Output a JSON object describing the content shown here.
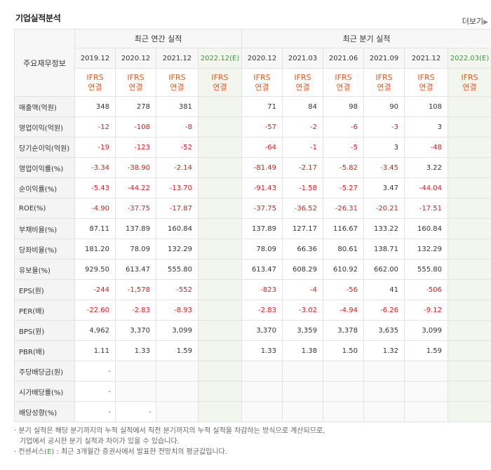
{
  "title": "기업실적분석",
  "more_label": "더보기",
  "corner_label": "주요재무정보",
  "group_annual": "최근 연간 실적",
  "group_quarter": "최근 분기 실적",
  "periods": [
    {
      "label": "2019.12",
      "est": false
    },
    {
      "label": "2020.12",
      "est": false
    },
    {
      "label": "2021.12",
      "est": false
    },
    {
      "label": "2022.12(E)",
      "est": true
    },
    {
      "label": "2020.12",
      "est": false
    },
    {
      "label": "2021.03",
      "est": false
    },
    {
      "label": "2021.06",
      "est": false
    },
    {
      "label": "2021.09",
      "est": false
    },
    {
      "label": "2021.12",
      "est": false
    },
    {
      "label": "2022.03(E)",
      "est": true
    }
  ],
  "ifrs_line1": "IFRS",
  "ifrs_line2": "연결",
  "rows": [
    {
      "label": "매출액(억원)",
      "values": [
        "348",
        "278",
        "381",
        "",
        "71",
        "84",
        "98",
        "90",
        "108",
        ""
      ]
    },
    {
      "label": "영업이익(억원)",
      "values": [
        "-12",
        "-108",
        "-8",
        "",
        "-57",
        "-2",
        "-6",
        "-3",
        "3",
        ""
      ]
    },
    {
      "label": "당기순이익(억원)",
      "values": [
        "-19",
        "-123",
        "-52",
        "",
        "-64",
        "-1",
        "-5",
        "3",
        "-48",
        ""
      ]
    },
    {
      "label": "영업이익률(%)",
      "values": [
        "-3.34",
        "-38.90",
        "-2.14",
        "",
        "-81.49",
        "-2.17",
        "-5.82",
        "-3.45",
        "3.22",
        ""
      ]
    },
    {
      "label": "순이익률(%)",
      "values": [
        "-5.43",
        "-44.22",
        "-13.70",
        "",
        "-91.43",
        "-1.58",
        "-5.27",
        "3.47",
        "-44.04",
        ""
      ]
    },
    {
      "label": "ROE(%)",
      "values": [
        "-4.90",
        "-37.75",
        "-17.87",
        "",
        "-37.75",
        "-36.52",
        "-26.31",
        "-20.21",
        "-17.51",
        ""
      ]
    },
    {
      "label": "부채비율(%)",
      "values": [
        "87.11",
        "137.89",
        "160.84",
        "",
        "137.89",
        "127.17",
        "116.67",
        "133.22",
        "160.84",
        ""
      ]
    },
    {
      "label": "당좌비율(%)",
      "values": [
        "181.20",
        "78.09",
        "132.29",
        "",
        "78.09",
        "66.36",
        "80.61",
        "138.71",
        "132.29",
        ""
      ]
    },
    {
      "label": "유보율(%)",
      "values": [
        "929.50",
        "613.47",
        "555.80",
        "",
        "613.47",
        "608.29",
        "610.92",
        "662.00",
        "555.80",
        ""
      ]
    },
    {
      "label": "EPS(원)",
      "values": [
        "-244",
        "-1,578",
        "-552",
        "",
        "-823",
        "-4",
        "-56",
        "41",
        "-506",
        ""
      ]
    },
    {
      "label": "PER(배)",
      "values": [
        "-22.60",
        "-2.83",
        "-8.93",
        "",
        "-2.83",
        "-3.02",
        "-4.94",
        "-6.26",
        "-9.12",
        ""
      ]
    },
    {
      "label": "BPS(원)",
      "values": [
        "4,962",
        "3,370",
        "3,099",
        "",
        "3,370",
        "3,359",
        "3,378",
        "3,635",
        "3,099",
        ""
      ]
    },
    {
      "label": "PBR(배)",
      "values": [
        "1.11",
        "1.33",
        "1.59",
        "",
        "1.33",
        "1.38",
        "1.50",
        "1.32",
        "1.59",
        ""
      ]
    }
  ],
  "dividend_rows": [
    {
      "label": "주당배당금(원)",
      "values": [
        "-",
        "",
        "",
        "",
        "",
        "",
        "",
        "",
        "",
        ""
      ]
    },
    {
      "label": "시가배당률(%)",
      "values": [
        "-",
        "",
        "",
        "",
        "",
        "",
        "",
        "",
        "",
        ""
      ]
    },
    {
      "label": "배당성향(%)",
      "values": [
        "-",
        "-",
        "",
        "",
        "",
        "",
        "",
        "",
        "",
        ""
      ]
    }
  ],
  "notes": {
    "line1": "분기 실적은 해당 분기까지의 누적 실적에서 직전 분기까지의 누적 실적을 차감하는 방식으로 계산되므로,",
    "line2": "기업에서 공시한 분기 실적과 차이가 있을 수 있습니다.",
    "line3_prefix": "컨센서스(",
    "line3_e": "E",
    "line3_suffix": ") : 최근 3개월간 증권사에서 발표한 전망치의 평균값입니다."
  },
  "colors": {
    "negative": "#e01a1a",
    "ifrs": "#e85a1e",
    "estimate": "#3a9a3a"
  }
}
